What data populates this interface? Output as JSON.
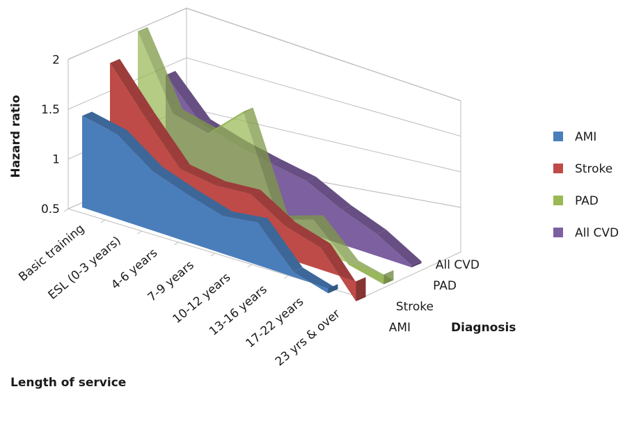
{
  "chart_data": {
    "type": "area",
    "three_d": true,
    "title": "",
    "ylabel": "Hazard ratio",
    "xlabel": "Length of service",
    "zlabel": "Diagnosis",
    "ylim": [
      0.5,
      2
    ],
    "yticks": [
      "0.5",
      "1",
      "1.5",
      "2"
    ],
    "categories": [
      "Basic training",
      "ESL (0-3 years)",
      "4-6 years",
      "7-9 years",
      "10-12 years",
      "13-16 years",
      "17-22 years",
      "23 yrs & over"
    ],
    "depth_categories": [
      "AMI",
      "Stroke",
      "PAD",
      "All CVD"
    ],
    "legend_position": "right",
    "grid": true,
    "series": [
      {
        "name": "AMI",
        "color": "#4a7ebb",
        "values": [
          1.42,
          1.35,
          1.1,
          0.98,
          0.88,
          0.93,
          0.55,
          0.45
        ]
      },
      {
        "name": "Stroke",
        "color": "#be4b48",
        "values": [
          1.88,
          1.45,
          1.05,
          1.0,
          1.03,
          0.82,
          0.72,
          0.3
        ]
      },
      {
        "name": "PAD",
        "color": "#98b954",
        "values": [
          2.13,
          1.42,
          1.34,
          1.67,
          0.7,
          0.82,
          0.48,
          0.4
        ]
      },
      {
        "name": "All CVD",
        "color": "#7d60a0",
        "values": [
          1.62,
          1.25,
          1.15,
          1.08,
          1.02,
          0.85,
          0.72,
          0.52
        ]
      }
    ]
  }
}
